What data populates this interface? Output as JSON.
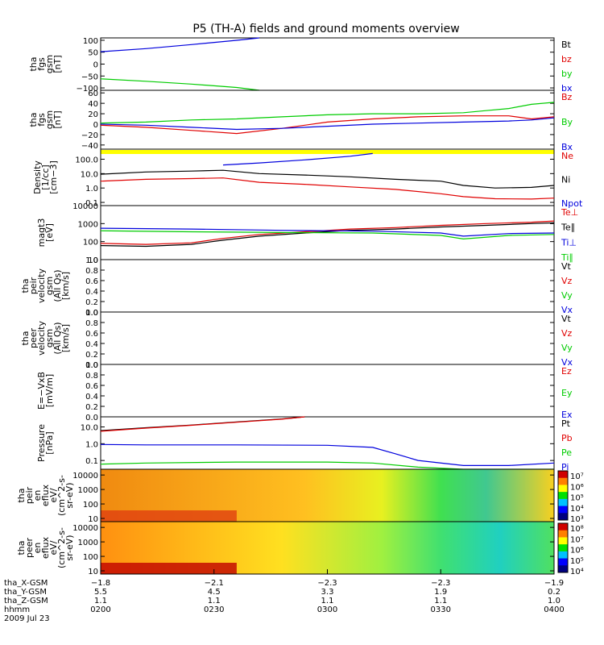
{
  "title": "P5 (TH-A) fields and ground moments overview",
  "colors": {
    "black": "#000000",
    "red": "#e00000",
    "green": "#00cc00",
    "blue": "#0000dd",
    "yellow": "#ffff00"
  },
  "chart_data": [
    {
      "type": "line",
      "ylabel": [
        "tha",
        "fgs",
        "gsm",
        "[nT]"
      ],
      "yscale": "linear",
      "yticks": [
        -100,
        -50,
        0,
        50,
        100
      ],
      "ytick_labels": [
        "−100",
        "−50",
        "0",
        "50",
        "100"
      ],
      "ylim": [
        -110,
        110
      ],
      "legend": [
        {
          "label": "Bt",
          "color": "#000000"
        },
        {
          "label": "bz",
          "color": "#e00000"
        },
        {
          "label": "by",
          "color": "#00cc00"
        },
        {
          "label": "bx",
          "color": "#0000dd"
        }
      ],
      "series": [
        {
          "name": "bx",
          "color": "#0000dd",
          "x": [
            0,
            0.1,
            0.2,
            0.3,
            0.35
          ],
          "y": [
            52,
            65,
            82,
            100,
            110
          ]
        },
        {
          "name": "by",
          "color": "#00cc00",
          "x": [
            0,
            0.1,
            0.2,
            0.3,
            0.35
          ],
          "y": [
            -62,
            -72,
            -84,
            -98,
            -110
          ]
        }
      ]
    },
    {
      "type": "line",
      "ylabel": [
        "tha",
        "fgs",
        "gsm",
        "[nT]"
      ],
      "yscale": "linear",
      "yticks": [
        -40,
        -20,
        0,
        20,
        40,
        60
      ],
      "ytick_labels": [
        "−40",
        "−20",
        "0",
        "20",
        "40",
        "60"
      ],
      "ylim": [
        -48,
        65
      ],
      "legend": [
        {
          "label": "Bz",
          "color": "#e00000"
        },
        {
          "label": "By",
          "color": "#00cc00"
        },
        {
          "label": "Bx",
          "color": "#0000dd"
        }
      ],
      "series": [
        {
          "name": "Bz",
          "color": "#e00000",
          "x": [
            0,
            0.1,
            0.2,
            0.3,
            0.4,
            0.5,
            0.6,
            0.7,
            0.8,
            0.9,
            0.95,
            1
          ],
          "y": [
            -2,
            -6,
            -12,
            -18,
            -8,
            4,
            10,
            14,
            16,
            16,
            10,
            14
          ]
        },
        {
          "name": "By",
          "color": "#00cc00",
          "x": [
            0,
            0.1,
            0.2,
            0.3,
            0.4,
            0.5,
            0.6,
            0.7,
            0.8,
            0.85,
            0.9,
            0.95,
            1
          ],
          "y": [
            2,
            4,
            8,
            10,
            14,
            18,
            20,
            20,
            22,
            26,
            30,
            38,
            42
          ]
        },
        {
          "name": "Bx",
          "color": "#0000dd",
          "x": [
            0,
            0.1,
            0.2,
            0.3,
            0.4,
            0.5,
            0.6,
            0.7,
            0.8,
            0.9,
            0.95,
            1
          ],
          "y": [
            0,
            -2,
            -6,
            -10,
            -8,
            -4,
            0,
            2,
            4,
            6,
            8,
            12
          ]
        }
      ]
    },
    {
      "type": "line",
      "ylabel": [
        "Density",
        "[1/cc]",
        "[cm−3]"
      ],
      "yscale": "log",
      "yticks": [
        0.1,
        1,
        10,
        100
      ],
      "ytick_labels": [
        "0.1",
        "1.0",
        "10.0",
        "100.0"
      ],
      "ylim": [
        0.06,
        500
      ],
      "legend": [
        {
          "label": "Ne",
          "color": "#e00000"
        },
        {
          "label": "Ni",
          "color": "#000000"
        },
        {
          "label": "Npot",
          "color": "#0000dd"
        }
      ],
      "series": [
        {
          "name": "Ni",
          "color": "#000000",
          "x": [
            0,
            0.1,
            0.2,
            0.27,
            0.35,
            0.45,
            0.55,
            0.65,
            0.75,
            0.8,
            0.87,
            0.95,
            1
          ],
          "y": [
            9,
            13,
            15,
            17,
            10,
            8,
            6,
            4,
            3,
            1.5,
            1.0,
            1.1,
            1.5
          ]
        },
        {
          "name": "Ne",
          "color": "#e00000",
          "x": [
            0,
            0.1,
            0.2,
            0.27,
            0.35,
            0.45,
            0.55,
            0.65,
            0.75,
            0.8,
            0.87,
            0.95,
            1
          ],
          "y": [
            3,
            4,
            4.5,
            5,
            2.5,
            1.8,
            1.2,
            0.8,
            0.4,
            0.25,
            0.18,
            0.17,
            0.2
          ]
        },
        {
          "name": "Npot",
          "color": "#0000dd",
          "x": [
            0.27,
            0.35,
            0.45,
            0.55,
            0.6
          ],
          "y": [
            40,
            55,
            90,
            160,
            250
          ]
        }
      ]
    },
    {
      "type": "line",
      "ylabel": [
        "magt3",
        "[eV]"
      ],
      "yscale": "log",
      "yticks": [
        10,
        100,
        1000,
        10000
      ],
      "ytick_labels": [
        "10",
        "100",
        "1000",
        "10000"
      ],
      "ylim": [
        10,
        10000
      ],
      "legend": [
        {
          "label": "Te⊥",
          "color": "#e00000"
        },
        {
          "label": "Te∥",
          "color": "#000000"
        },
        {
          "label": "Ti⊥",
          "color": "#0000dd"
        },
        {
          "label": "Ti∥",
          "color": "#00cc00"
        }
      ],
      "series": [
        {
          "name": "Te⊥",
          "color": "#e00000",
          "x": [
            0,
            0.1,
            0.2,
            0.27,
            0.35,
            0.45,
            0.55,
            0.65,
            0.75,
            0.85,
            0.95,
            1
          ],
          "y": [
            80,
            70,
            85,
            150,
            250,
            350,
            500,
            600,
            800,
            1000,
            1200,
            1400
          ]
        },
        {
          "name": "Te∥",
          "color": "#000000",
          "x": [
            0,
            0.1,
            0.2,
            0.27,
            0.35,
            0.45,
            0.55,
            0.65,
            0.75,
            0.85,
            0.95,
            1
          ],
          "y": [
            60,
            55,
            70,
            120,
            200,
            300,
            420,
            500,
            650,
            800,
            1000,
            1100
          ]
        },
        {
          "name": "Ti⊥",
          "color": "#0000dd",
          "x": [
            0,
            0.2,
            0.4,
            0.6,
            0.75,
            0.8,
            0.9,
            1
          ],
          "y": [
            550,
            500,
            420,
            380,
            300,
            200,
            280,
            300
          ]
        },
        {
          "name": "Ti∥",
          "color": "#00cc00",
          "x": [
            0,
            0.2,
            0.4,
            0.6,
            0.75,
            0.8,
            0.9,
            1
          ],
          "y": [
            400,
            350,
            320,
            300,
            220,
            140,
            220,
            250
          ]
        }
      ]
    },
    {
      "type": "line",
      "ylabel": [
        "tha",
        "peir",
        "velocity",
        "gsm",
        "(All Qs)",
        "[km/s]"
      ],
      "yscale": "linear",
      "yticks": [
        0,
        0.2,
        0.4,
        0.6,
        0.8,
        1.0
      ],
      "ytick_labels": [
        "0.0",
        "0.2",
        "0.4",
        "0.6",
        "0.8",
        "1.0"
      ],
      "ylim": [
        0,
        1
      ],
      "legend": [
        {
          "label": "Vt",
          "color": "#000000"
        },
        {
          "label": "Vz",
          "color": "#e00000"
        },
        {
          "label": "Vy",
          "color": "#00cc00"
        },
        {
          "label": "Vx",
          "color": "#0000dd"
        }
      ],
      "series": []
    },
    {
      "type": "line",
      "ylabel": [
        "tha",
        "peer",
        "velocity",
        "gsm",
        "(All Qs)",
        "[km/s]"
      ],
      "yscale": "linear",
      "yticks": [
        0,
        0.2,
        0.4,
        0.6,
        0.8,
        1.0
      ],
      "ytick_labels": [
        "0.0",
        "0.2",
        "0.4",
        "0.6",
        "0.8",
        "1.0"
      ],
      "ylim": [
        0,
        1
      ],
      "legend": [
        {
          "label": "Vt",
          "color": "#000000"
        },
        {
          "label": "Vz",
          "color": "#e00000"
        },
        {
          "label": "Vy",
          "color": "#00cc00"
        },
        {
          "label": "Vx",
          "color": "#0000dd"
        }
      ],
      "series": []
    },
    {
      "type": "line",
      "ylabel": [
        "E=−VxB",
        "[mV/m]"
      ],
      "yscale": "linear",
      "yticks": [
        0,
        0.2,
        0.4,
        0.6,
        0.8,
        1.0
      ],
      "ytick_labels": [
        "0.0",
        "0.2",
        "0.4",
        "0.6",
        "0.8",
        "1.0"
      ],
      "ylim": [
        0,
        1
      ],
      "legend": [
        {
          "label": "Ez",
          "color": "#e00000"
        },
        {
          "label": "Ey",
          "color": "#00cc00"
        },
        {
          "label": "Ex",
          "color": "#0000dd"
        }
      ],
      "series": []
    },
    {
      "type": "line",
      "ylabel": [
        "Pressure",
        "[nPa]"
      ],
      "yscale": "log",
      "yticks": [
        0.1,
        1,
        10
      ],
      "ytick_labels": [
        "0.1",
        "1.0",
        "10.0"
      ],
      "ylim": [
        0.03,
        40
      ],
      "legend": [
        {
          "label": "Pt",
          "color": "#000000"
        },
        {
          "label": "Pb",
          "color": "#e00000"
        },
        {
          "label": "Pe",
          "color": "#00cc00"
        },
        {
          "label": "Pi",
          "color": "#0000dd"
        }
      ],
      "series": [
        {
          "name": "Pt",
          "color": "#000000",
          "x": [
            0,
            0.1,
            0.2,
            0.3,
            0.4,
            0.45
          ],
          "y": [
            6,
            9,
            13,
            20,
            30,
            40
          ]
        },
        {
          "name": "Pb",
          "color": "#e00000",
          "x": [
            0,
            0.1,
            0.2,
            0.3,
            0.4,
            0.45
          ],
          "y": [
            5.5,
            8.5,
            12.5,
            19,
            29,
            40
          ]
        },
        {
          "name": "Pi",
          "color": "#0000dd",
          "x": [
            0,
            0.1,
            0.3,
            0.5,
            0.6,
            0.65,
            0.7,
            0.8,
            0.9,
            1
          ],
          "y": [
            0.9,
            0.85,
            0.85,
            0.8,
            0.6,
            0.25,
            0.1,
            0.05,
            0.05,
            0.07
          ]
        },
        {
          "name": "Pe",
          "color": "#00cc00",
          "x": [
            0,
            0.1,
            0.3,
            0.5,
            0.6,
            0.7,
            0.8,
            0.9,
            1
          ],
          "y": [
            0.06,
            0.07,
            0.08,
            0.08,
            0.07,
            0.04,
            0.03,
            0.03,
            0.03
          ]
        }
      ]
    },
    {
      "type": "heatmap",
      "ylabel": [
        "tha",
        "peir",
        "en",
        "eflux",
        "eV/",
        "(cm^2-s-",
        "sr-eV)"
      ],
      "yscale": "log",
      "yticks": [
        10,
        100,
        1000,
        10000
      ],
      "ytick_labels": [
        "10",
        "100",
        "1000",
        "10000"
      ],
      "ylim": [
        6,
        25000
      ],
      "colorbar_labels": [
        "10⁷",
        "10⁶",
        "10⁵",
        "10⁴",
        "10³"
      ]
    },
    {
      "type": "heatmap",
      "ylabel": [
        "tha",
        "peer",
        "en",
        "eflux",
        "eV/",
        "(cm^2-s-",
        "sr-eV)"
      ],
      "yscale": "log",
      "yticks": [
        10,
        100,
        1000,
        10000
      ],
      "ytick_labels": [
        "10",
        "100",
        "1000",
        "10000"
      ],
      "ylim": [
        6,
        25000
      ],
      "colorbar_labels": [
        "10⁸",
        "10⁷",
        "10⁶",
        "10⁵",
        "10⁴"
      ]
    }
  ],
  "x_axis": {
    "ticks": [
      0,
      0.25,
      0.5,
      0.75,
      1.0
    ],
    "rows": [
      {
        "label": "tha_X-GSM",
        "values": [
          "−1.8",
          "−2.1",
          "−2.3",
          "−2.3",
          "−1.9"
        ]
      },
      {
        "label": "tha_Y-GSM",
        "values": [
          "5.5",
          "4.5",
          "3.3",
          "1.9",
          "0.2"
        ]
      },
      {
        "label": "tha_Z-GSM",
        "values": [
          "1.1",
          "1.1",
          "1.1",
          "1.1",
          "1.0"
        ]
      },
      {
        "label": "hhmm",
        "values": [
          "0200",
          "0230",
          "0300",
          "0330",
          "0400"
        ]
      }
    ],
    "date": "2009 Jul 23"
  }
}
